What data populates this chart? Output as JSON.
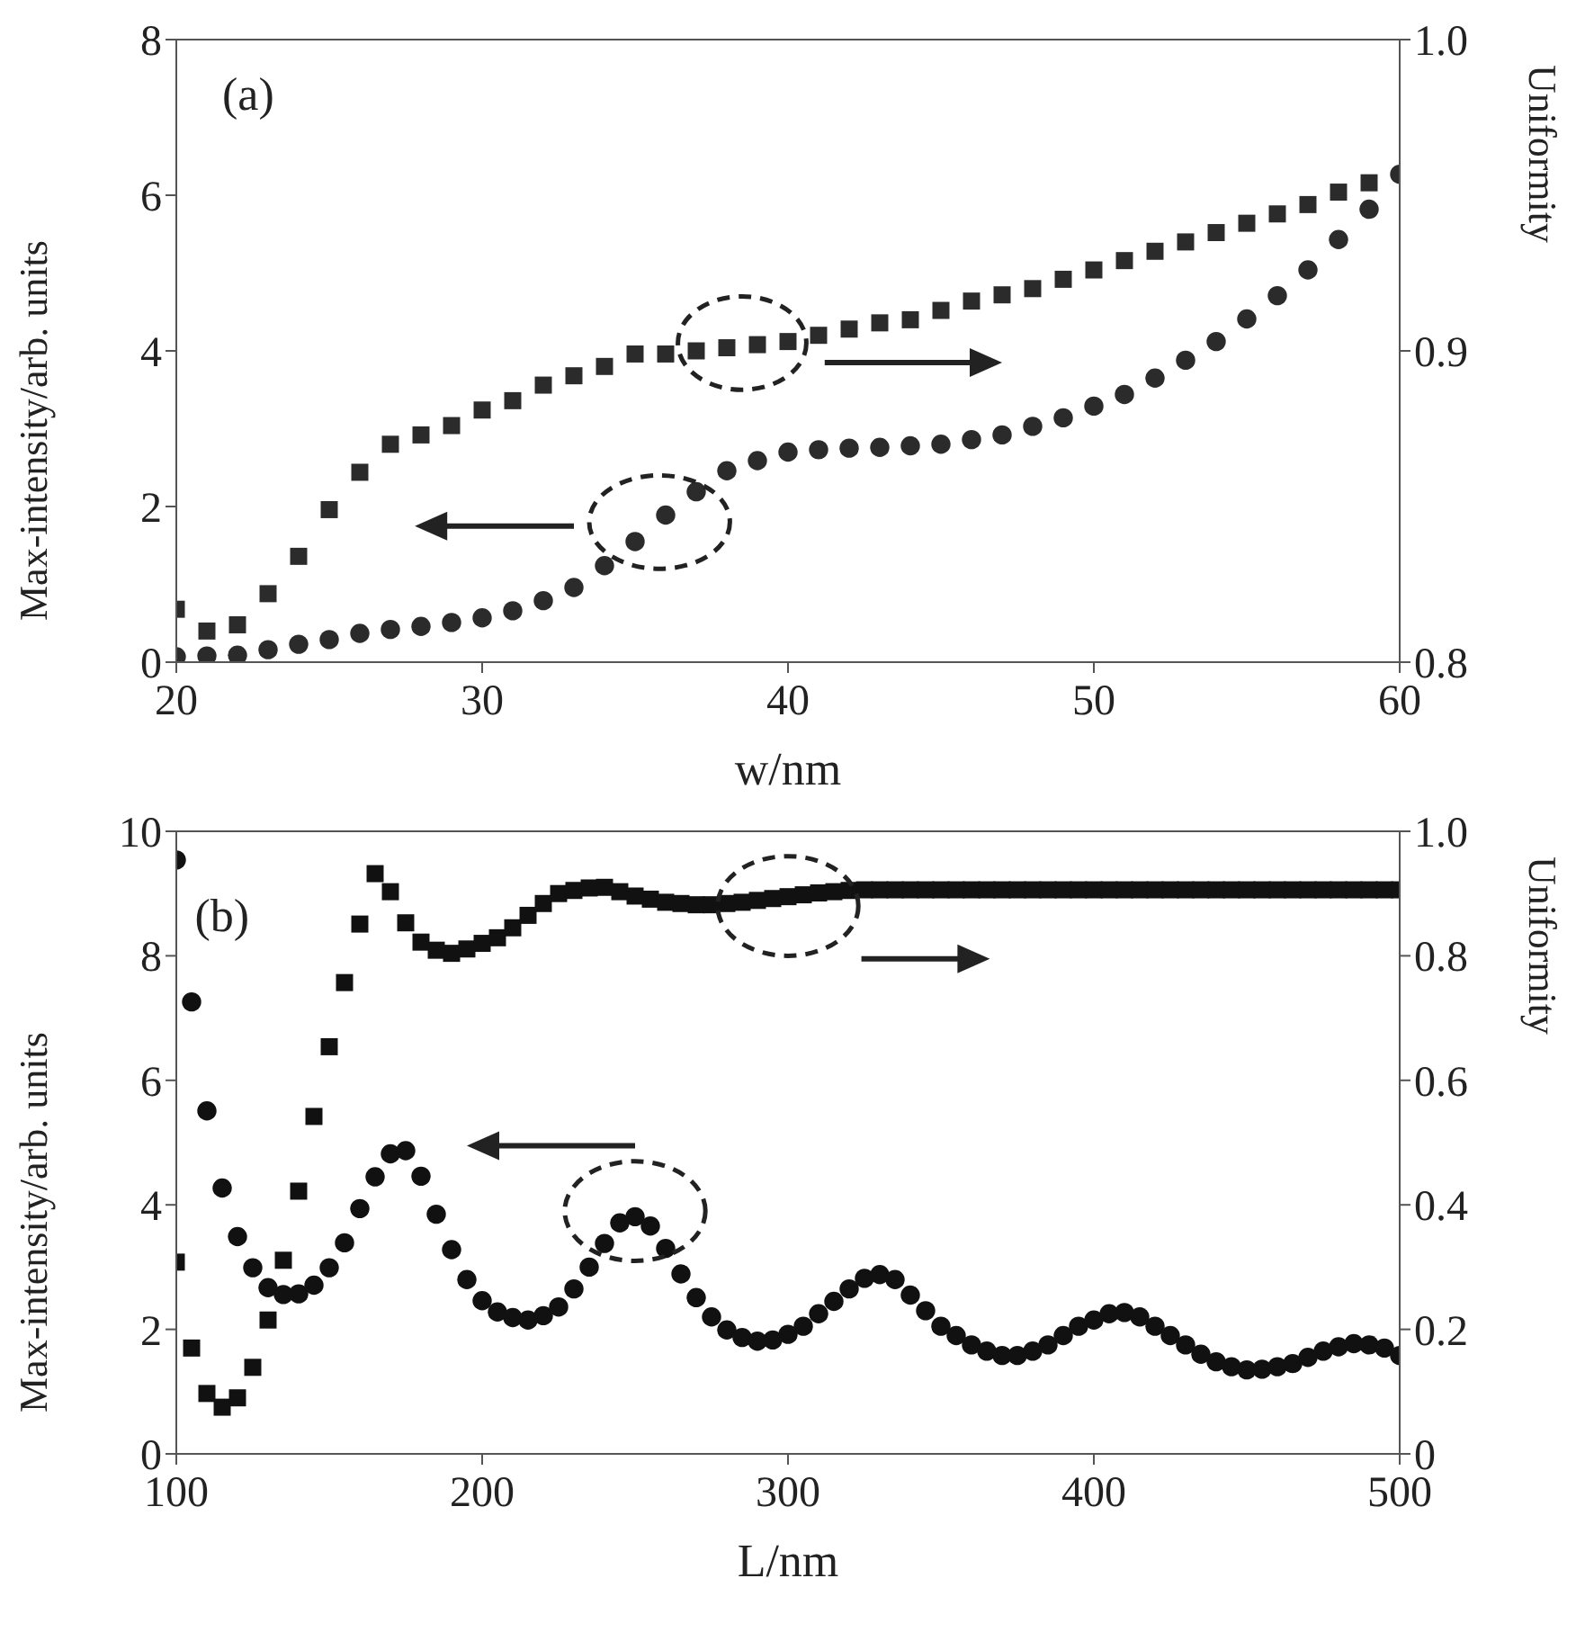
{
  "chart_data": [
    {
      "type": "scatter",
      "xlabel": "w/nm",
      "ylabel": "Max-intensity/arb. units",
      "y2label": "Uniformity",
      "annotations": [
        "(a)"
      ],
      "xlim": [
        20,
        60
      ],
      "xticks": [
        20,
        30,
        40,
        50,
        60
      ],
      "ylim": [
        0,
        8
      ],
      "yticks": [
        0,
        2,
        4,
        6,
        8
      ],
      "y2lim": [
        0.8,
        1.0
      ],
      "y2ticks": [
        0.8,
        0.9,
        {
          "value": 1.0,
          "label": "1.0"
        }
      ],
      "x": [
        20,
        21,
        22,
        23,
        24,
        25,
        26,
        27,
        28,
        29,
        30,
        31,
        32,
        33,
        34,
        35,
        36,
        37,
        38,
        39,
        40,
        41,
        42,
        43,
        44,
        45,
        46,
        47,
        48,
        49,
        50,
        51,
        52,
        53,
        54,
        55,
        56,
        57,
        58,
        59,
        60
      ],
      "series": [
        {
          "color": "#2b2b2b",
          "marker": "circle",
          "values": [
            0.07,
            0.08,
            0.09,
            0.16,
            0.23,
            0.29,
            0.37,
            0.42,
            0.46,
            0.51,
            0.57,
            0.66,
            0.79,
            0.96,
            1.24,
            1.55,
            1.89,
            2.19,
            2.46,
            2.59,
            2.7,
            2.73,
            2.75,
            2.76,
            2.78,
            2.8,
            2.86,
            2.92,
            3.03,
            3.14,
            3.29,
            3.44,
            3.65,
            3.88,
            4.12,
            4.41,
            4.71,
            5.04,
            5.43,
            5.82,
            6.27
          ]
        },
        {
          "color": "#2b2b2b",
          "marker": "square",
          "axis": "y2",
          "x": [
            20,
            21,
            22,
            23,
            24,
            25,
            26,
            27,
            28,
            29,
            30,
            31,
            32,
            33,
            34,
            35,
            36,
            37,
            38,
            39,
            40,
            41,
            42,
            43,
            44,
            45,
            46,
            47,
            48,
            49,
            50,
            51,
            52,
            53,
            54,
            55,
            56,
            57,
            58,
            59
          ],
          "values": [
            0.817,
            0.81,
            0.812,
            0.822,
            0.834,
            0.849,
            0.861,
            0.87,
            0.873,
            0.876,
            0.881,
            0.884,
            0.889,
            0.892,
            0.895,
            0.899,
            0.899,
            0.9,
            0.901,
            0.902,
            0.903,
            0.905,
            0.907,
            0.909,
            0.91,
            0.913,
            0.916,
            0.918,
            0.92,
            0.923,
            0.926,
            0.929,
            0.932,
            0.935,
            0.938,
            0.941,
            0.944,
            0.947,
            0.951,
            0.954
          ]
        }
      ]
    },
    {
      "type": "scatter",
      "xlabel": "L/nm",
      "ylabel": "Max-intensity/arb. units",
      "y2label": "Uniformity",
      "annotations": [
        "(b)"
      ],
      "xlim": [
        100,
        500
      ],
      "xticks": [
        100,
        200,
        300,
        400,
        500
      ],
      "ylim": [
        0,
        10
      ],
      "yticks": [
        0,
        2,
        4,
        6,
        8,
        10
      ],
      "y2lim": [
        0,
        1.0
      ],
      "y2ticks": [
        0,
        0.2,
        0.4,
        0.6,
        0.8,
        {
          "value": 1.0,
          "label": "1.0"
        }
      ],
      "x": [
        100,
        105,
        110,
        115,
        120,
        125,
        130,
        135,
        140,
        145,
        150,
        155,
        160,
        165,
        170,
        175,
        180,
        185,
        190,
        195,
        200,
        205,
        210,
        215,
        220,
        225,
        230,
        235,
        240,
        245,
        250,
        255,
        260,
        265,
        270,
        275,
        280,
        285,
        290,
        295,
        300,
        305,
        310,
        315,
        320,
        325,
        330,
        335,
        340,
        345,
        350,
        355,
        360,
        365,
        370,
        375,
        380,
        385,
        390,
        395,
        400,
        405,
        410,
        415,
        420,
        425,
        430,
        435,
        440,
        445,
        450,
        455,
        460,
        465,
        470,
        475,
        480,
        485,
        490,
        495,
        500
      ],
      "series": [
        {
          "color": "#111111",
          "marker": "circle",
          "values": [
            9.54,
            7.26,
            5.51,
            4.27,
            3.49,
            2.99,
            2.67,
            2.56,
            2.57,
            2.71,
            2.99,
            3.39,
            3.94,
            4.45,
            4.82,
            4.87,
            4.46,
            3.85,
            3.28,
            2.8,
            2.46,
            2.28,
            2.19,
            2.15,
            2.22,
            2.36,
            2.65,
            3.0,
            3.38,
            3.71,
            3.81,
            3.66,
            3.3,
            2.89,
            2.51,
            2.2,
            1.99,
            1.87,
            1.81,
            1.83,
            1.92,
            2.05,
            2.25,
            2.45,
            2.65,
            2.82,
            2.88,
            2.8,
            2.55,
            2.3,
            2.05,
            1.9,
            1.75,
            1.65,
            1.58,
            1.58,
            1.65,
            1.75,
            1.9,
            2.05,
            2.15,
            2.25,
            2.27,
            2.2,
            2.05,
            1.9,
            1.75,
            1.6,
            1.48,
            1.4,
            1.35,
            1.36,
            1.4,
            1.45,
            1.55,
            1.65,
            1.72,
            1.77,
            1.75,
            1.7,
            1.58
          ]
        },
        {
          "color": "#111111",
          "marker": "square",
          "axis": "y2",
          "values": [
            0.308,
            0.17,
            0.097,
            0.075,
            0.09,
            0.139,
            0.215,
            0.311,
            0.422,
            0.542,
            0.654,
            0.757,
            0.851,
            0.932,
            0.903,
            0.853,
            0.822,
            0.809,
            0.804,
            0.811,
            0.82,
            0.829,
            0.845,
            0.865,
            0.884,
            0.9,
            0.905,
            0.909,
            0.91,
            0.903,
            0.896,
            0.891,
            0.886,
            0.884,
            0.882,
            0.882,
            0.884,
            0.886,
            0.889,
            0.892,
            0.895,
            0.898,
            0.901,
            0.903,
            0.905,
            0.906,
            0.906,
            0.906,
            0.906,
            0.906,
            0.906,
            0.906,
            0.906,
            0.906,
            0.906,
            0.906,
            0.906,
            0.906,
            0.906,
            0.906,
            0.906,
            0.906,
            0.906,
            0.906,
            0.906,
            0.906,
            0.906,
            0.906,
            0.906,
            0.906,
            0.906,
            0.906,
            0.906,
            0.906,
            0.906,
            0.906,
            0.906,
            0.906,
            0.906,
            0.906,
            0.906
          ]
        }
      ]
    }
  ]
}
